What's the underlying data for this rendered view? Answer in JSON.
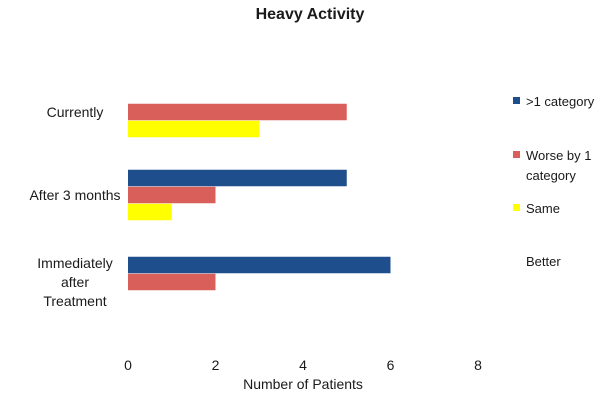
{
  "chart_data": {
    "type": "bar",
    "orientation": "horizontal",
    "title": "Heavy Activity",
    "xlabel": "Number of Patients",
    "ylabel": "",
    "xlim": [
      0,
      8
    ],
    "xticks": [
      0,
      2,
      4,
      6,
      8
    ],
    "grid": false,
    "legend_position": "right",
    "categories": [
      "Immediately after Treatment",
      "After 3 months",
      "Currently"
    ],
    "category_display_lines": [
      [
        "Immediately",
        "after",
        "Treatment"
      ],
      [
        "After 3 months"
      ],
      [
        "Currently"
      ]
    ],
    "series": [
      {
        "name": ">1 category",
        "color": "#1f4e8c",
        "values": [
          6,
          5,
          0
        ]
      },
      {
        "name": "Worse by 1 category",
        "color": "#d9605a",
        "values": [
          2,
          2,
          5
        ]
      },
      {
        "name": "Same",
        "color": "#ffff00",
        "values": [
          0,
          1,
          3
        ]
      }
    ],
    "legend": [
      {
        "lines": [
          ">1 category"
        ],
        "color": "#1f4e8c"
      },
      {
        "lines": [
          "Worse by 1",
          "category"
        ],
        "color": "#d9605a"
      },
      {
        "lines": [
          "Same"
        ],
        "color": "#ffff00"
      },
      {
        "lines": [
          "Better"
        ],
        "color": null
      }
    ]
  }
}
